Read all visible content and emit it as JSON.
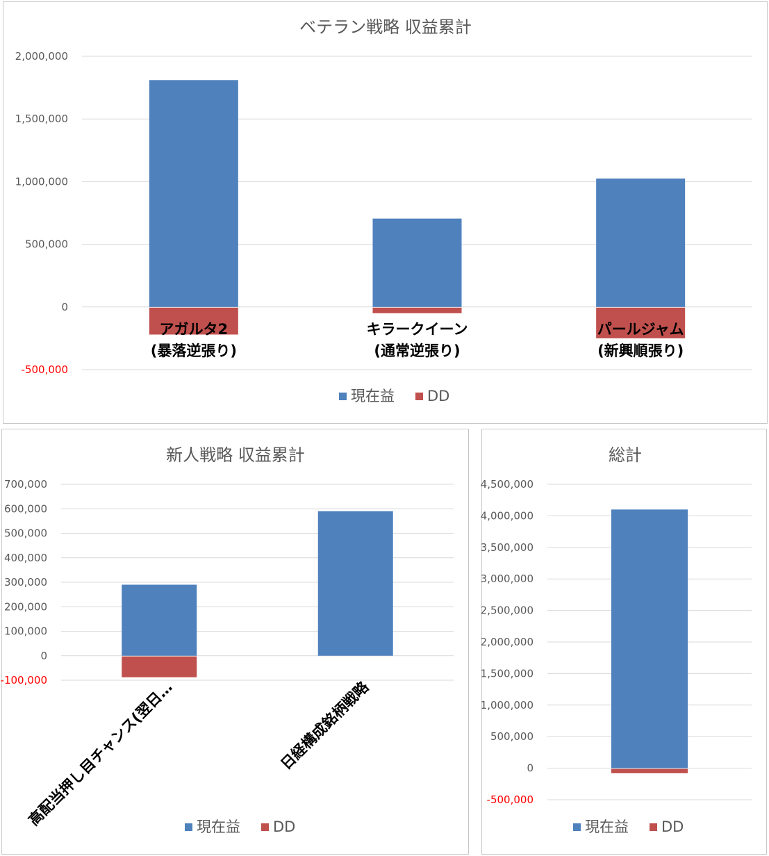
{
  "colors": {
    "current": "#4f81bd",
    "dd": "#c0504d",
    "grid": "#d9d9d9",
    "text": "#595959",
    "negative": "#ff0000"
  },
  "chart_data": [
    {
      "type": "bar",
      "stacked": true,
      "title": "ベテラン戦略 収益累計",
      "categories": [
        [
          "アガルタ2",
          "(暴落逆張り)"
        ],
        [
          "キラークイーン",
          "(通常逆張り)"
        ],
        [
          "パールジャム",
          "(新興順張り)"
        ]
      ],
      "series": [
        {
          "name": "現在益",
          "values": [
            1810000,
            705000,
            1025000
          ]
        },
        {
          "name": "DD",
          "values": [
            -220000,
            -50000,
            -250000
          ]
        }
      ],
      "yticks": [
        "2,000,000",
        "1,500,000",
        "1,000,000",
        "500,000",
        "0",
        "-500,000"
      ],
      "ylim": [
        -500000,
        2000000
      ],
      "grid": true,
      "legend": "bottom"
    },
    {
      "type": "bar",
      "stacked": true,
      "title": "新人戦略 収益累計",
      "categories": [
        [
          "高配当押し目チャンス(翌日…"
        ],
        [
          "日経構成銘柄戦略"
        ]
      ],
      "series": [
        {
          "name": "現在益",
          "values": [
            290000,
            590000
          ]
        },
        {
          "name": "DD",
          "values": [
            -88000,
            -3000
          ]
        }
      ],
      "yticks": [
        "700,000",
        "600,000",
        "500,000",
        "400,000",
        "300,000",
        "200,000",
        "100,000",
        "0",
        "-100,000"
      ],
      "ylim": [
        -100000,
        700000
      ],
      "grid": true,
      "legend": "bottom"
    },
    {
      "type": "bar",
      "stacked": true,
      "title": "総計",
      "categories": [
        []
      ],
      "series": [
        {
          "name": "現在益",
          "values": [
            4100000
          ]
        },
        {
          "name": "DD",
          "values": [
            -80000
          ]
        }
      ],
      "yticks": [
        "4,500,000",
        "4,000,000",
        "3,500,000",
        "3,000,000",
        "2,500,000",
        "2,000,000",
        "1,500,000",
        "1,000,000",
        "500,000",
        "0",
        "-500,000"
      ],
      "ylim": [
        -500000,
        4500000
      ],
      "grid": true,
      "legend": "bottom"
    }
  ]
}
